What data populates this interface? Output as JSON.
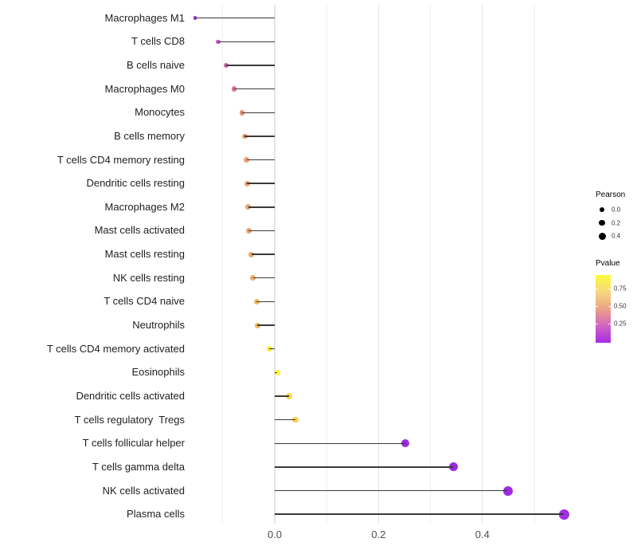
{
  "chart_data": {
    "type": "lollipop",
    "orientation": "horizontal",
    "xlabel": "",
    "ylabel": "",
    "x_ticks": [
      {
        "value": 0.0,
        "label": "0.0"
      },
      {
        "value": 0.2,
        "label": "0.2"
      },
      {
        "value": 0.4,
        "label": "0.4"
      }
    ],
    "x_gridlines_major": [
      0.0,
      0.2,
      0.4
    ],
    "x_gridlines_minor": [
      -0.1,
      0.1,
      0.3,
      0.5
    ],
    "xlim": [
      -0.17,
      0.62
    ],
    "grid": true,
    "rows": [
      {
        "label": "Macrophages M1",
        "pearson": -0.153,
        "color": "#9733CE",
        "size": 4.5
      },
      {
        "label": "T cells CD8",
        "pearson": -0.109,
        "color": "#C455B9",
        "size": 5.5
      },
      {
        "label": "B cells naive",
        "pearson": -0.094,
        "color": "#CE639E",
        "size": 6.0
      },
      {
        "label": "Macrophages M0",
        "pearson": -0.078,
        "color": "#DB7488",
        "size": 6.5
      },
      {
        "label": "Monocytes",
        "pearson": -0.063,
        "color": "#E58F73",
        "size": 6.6
      },
      {
        "label": "B cells memory",
        "pearson": -0.058,
        "color": "#E89A70",
        "size": 6.7
      },
      {
        "label": "T cells CD4 memory resting",
        "pearson": -0.054,
        "color": "#EBA172",
        "size": 6.7
      },
      {
        "label": "Dendritic cells resting",
        "pearson": -0.053,
        "color": "#ECA471",
        "size": 6.8
      },
      {
        "label": "Macrophages M2",
        "pearson": -0.051,
        "color": "#ECA56F",
        "size": 6.8
      },
      {
        "label": "Mast cells activated",
        "pearson": -0.05,
        "color": "#ECA56F",
        "size": 6.8
      },
      {
        "label": "Mast cells resting",
        "pearson": -0.045,
        "color": "#EEAB68",
        "size": 6.9
      },
      {
        "label": "NK cells resting",
        "pearson": -0.042,
        "color": "#EEAC66",
        "size": 6.9
      },
      {
        "label": "T cells CD4 naive",
        "pearson": -0.035,
        "color": "#F1B75F",
        "size": 7.0
      },
      {
        "label": "Neutrophils",
        "pearson": -0.033,
        "color": "#F2BA5C",
        "size": 7.0
      },
      {
        "label": "T cells CD4 memory activated",
        "pearson": -0.01,
        "color": "#FBEF38",
        "size": 7.2
      },
      {
        "label": "Eosinophils",
        "pearson": 0.005,
        "color": "#FDFB2F",
        "size": 7.5
      },
      {
        "label": "Dendritic cells activated",
        "pearson": 0.028,
        "color": "#F7D74D",
        "size": 7.6
      },
      {
        "label": "T cells regulatory  Tregs",
        "pearson": 0.04,
        "color": "#F5CF53",
        "size": 7.8
      },
      {
        "label": "T cells follicular helper",
        "pearson": 0.252,
        "color": "#9B2BE0",
        "size": 10.0
      },
      {
        "label": "T cells gamma delta",
        "pearson": 0.344,
        "color": "#9B2BE0",
        "size": 11.2
      },
      {
        "label": "NK cells activated",
        "pearson": 0.449,
        "color": "#9C2CE1",
        "size": 12.0
      },
      {
        "label": "Plasma cells",
        "pearson": 0.557,
        "color": "#A12FE3",
        "size": 13.0
      }
    ]
  },
  "legend": {
    "pearson": {
      "title": "Pearson",
      "items": [
        {
          "label": "0.0",
          "size": 6.0
        },
        {
          "label": "0.2",
          "size": 7.5
        },
        {
          "label": "0.4",
          "size": 9.0
        }
      ],
      "dot_color": "#000000"
    },
    "pvalue": {
      "title": "Pvalue",
      "tick_labels": [
        "0.75",
        "0.50",
        "0.25"
      ],
      "gradient_top_to_bottom": [
        "#FAFC3D",
        "#F6D77E",
        "#EBA385",
        "#D164C3",
        "#A92BE2"
      ]
    }
  },
  "colors": {
    "stick": "#3a3a3a",
    "grid_major": "#E4E4E4",
    "grid_minor": "#EFEFEF",
    "axis_text": "#4d4d4d",
    "label_text": "#1f1f1f",
    "background": "#ffffff"
  }
}
